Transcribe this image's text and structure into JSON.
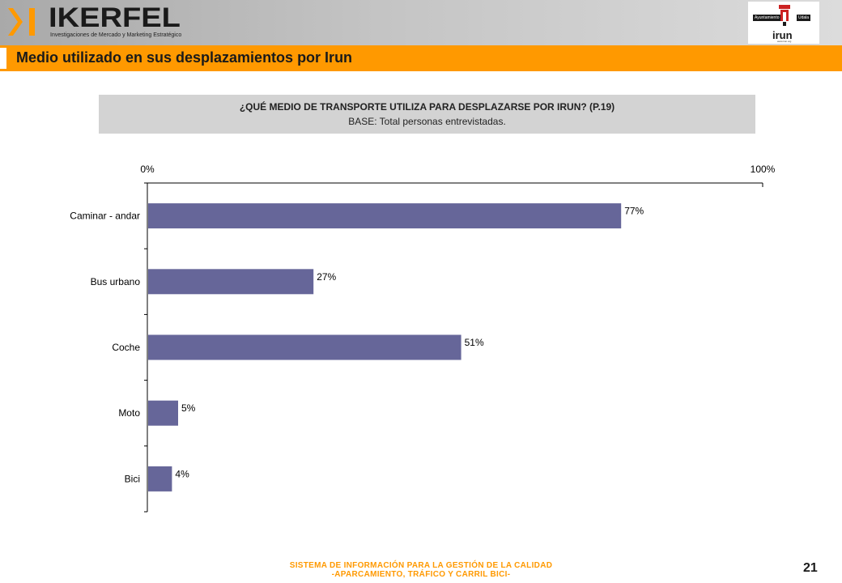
{
  "header": {
    "brand_name": "IKERFEL",
    "brand_tagline": "Investigaciones de Mercado y Marketing Estratégico",
    "city_logo": {
      "tag_left": "Ayuntamiento",
      "tag_right": "Udala",
      "name": "irun",
      "url": "www.irun.org"
    }
  },
  "page": {
    "title": "Medio utilizado en sus desplazamientos por Irun",
    "question": "¿QUÉ MEDIO DE TRANSPORTE UTILIZA PARA DESPLAZARSE POR IRUN? (P.19)",
    "base": "BASE: Total personas entrevistadas.",
    "page_number": "21"
  },
  "footer": {
    "line1": "SISTEMA DE INFORMACIÓN PARA LA GESTIÓN DE LA CALIDAD",
    "line2": "-APARCAMIENTO, TRÁFICO Y CARRIL BICI-"
  },
  "colors": {
    "accent": "#ff9900",
    "bar": "#666699",
    "question_bg": "#d3d3d3"
  },
  "chart_data": {
    "type": "bar",
    "orientation": "horizontal",
    "categories": [
      "Caminar - andar",
      "Bus urbano",
      "Coche",
      "Moto",
      "Bici"
    ],
    "values": [
      77,
      27,
      51,
      5,
      4
    ],
    "value_labels": [
      "77%",
      "27%",
      "51%",
      "5%",
      "4%"
    ],
    "xlim": [
      0,
      100
    ],
    "x_tick_labels": [
      "0%",
      "100%"
    ],
    "x_axis_position": "top",
    "grid": false,
    "legend": false
  }
}
